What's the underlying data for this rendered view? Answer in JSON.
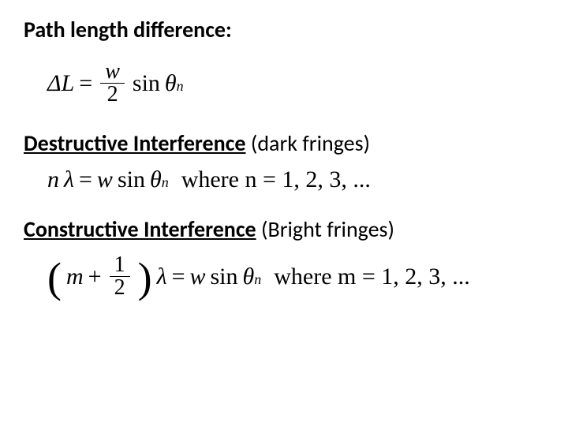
{
  "colors": {
    "text": "#000000",
    "background": "#ffffff"
  },
  "heading1": "Path length difference:",
  "eq1": {
    "deltaL": "ΔL",
    "eq": " = ",
    "frac_num": "w",
    "frac_den": "2",
    "sin": "sin",
    "theta": "θ",
    "theta_sub": "n"
  },
  "heading2_bold": "Destructive Interference",
  "heading2_plain": " (dark fringes)",
  "eq2": {
    "lhs_n": "n",
    "lhs_lambda": "λ",
    "eq": " = ",
    "w": "w",
    "sin": "sin",
    "theta": "θ",
    "theta_sub": "n",
    "where": " where n = 1, 2, 3, ..."
  },
  "heading3_bold": "Constructive Interference",
  "heading3_plain": " (Bright fringes)",
  "eq3": {
    "lparen": "(",
    "m": "m",
    "plus": " + ",
    "frac_num": "1",
    "frac_den": "2",
    "rparen": ")",
    "lambda": "λ",
    "eq": " = ",
    "w": "w",
    "sin": "sin",
    "theta": "θ",
    "theta_sub": "n",
    "where": " where m = 1, 2, 3, ..."
  }
}
